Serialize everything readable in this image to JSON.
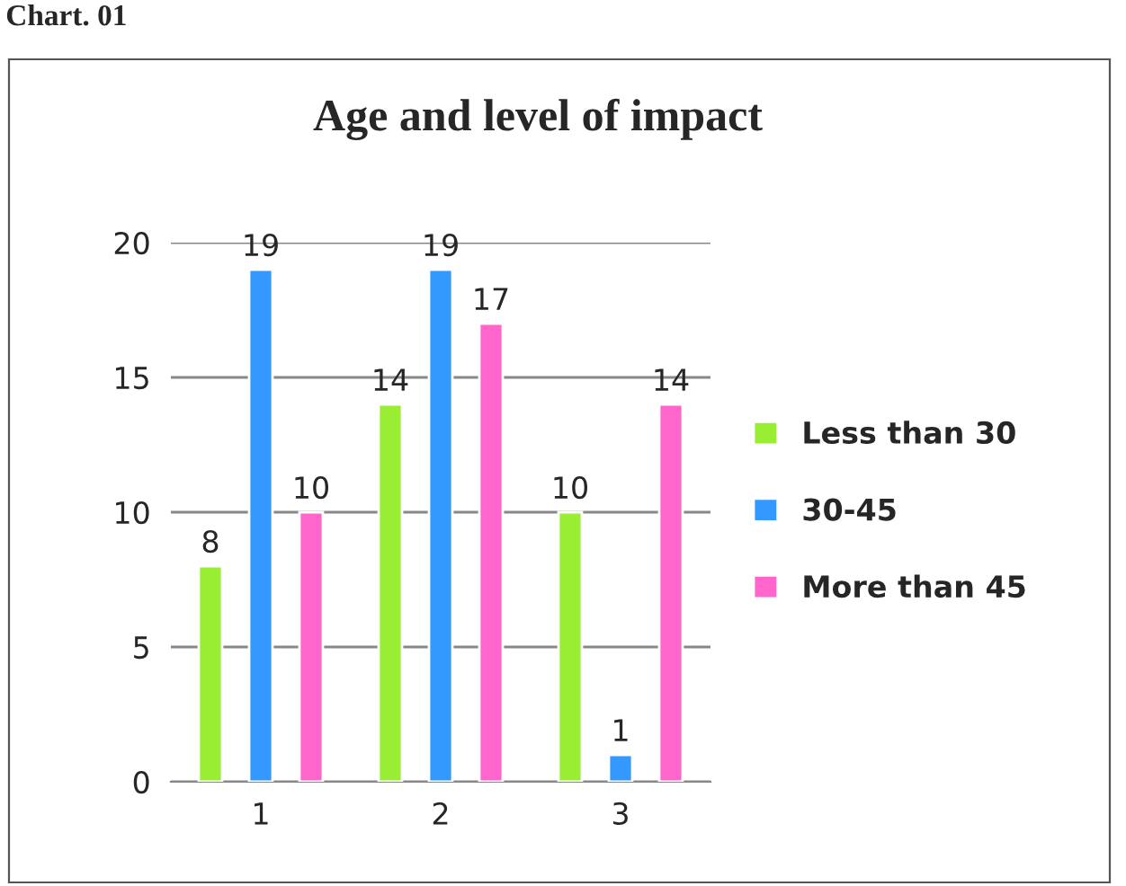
{
  "chart_data": {
    "type": "bar",
    "title": "Age and level of impact",
    "annotations": [
      "Chart. 01"
    ],
    "categories": [
      "1",
      "2",
      "3"
    ],
    "series": [
      {
        "name": "Less than 30",
        "color": "#99ee33",
        "values": [
          8,
          14,
          10
        ]
      },
      {
        "name": "30-45",
        "color": "#3399ff",
        "values": [
          19,
          19,
          1
        ]
      },
      {
        "name": "More than 45",
        "color": "#ff66cc",
        "values": [
          10,
          17,
          14
        ]
      }
    ],
    "ylim": [
      0,
      20
    ],
    "yticks": [
      0,
      5,
      10,
      15,
      20
    ],
    "grid": "y",
    "legend": "right",
    "data_labels": true
  }
}
